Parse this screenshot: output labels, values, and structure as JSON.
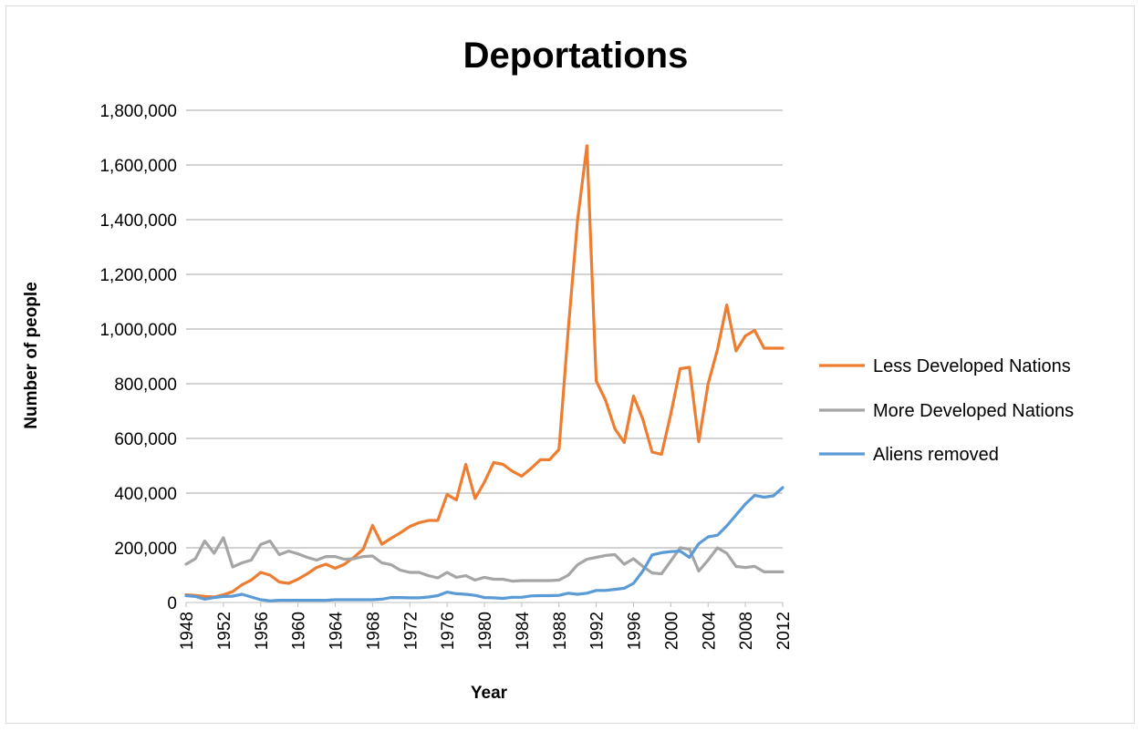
{
  "chart_data": {
    "type": "line",
    "title": "Deportations",
    "xlabel": "Year",
    "ylabel": "Number of people",
    "ylim": [
      0,
      1800000
    ],
    "yticks": [
      "0",
      "200,000",
      "400,000",
      "600,000",
      "800,000",
      "1,000,000",
      "1,200,000",
      "1,400,000",
      "1,600,000",
      "1,800,000"
    ],
    "xticks": [
      "1948",
      "1952",
      "1956",
      "1960",
      "1964",
      "1968",
      "1972",
      "1976",
      "1980",
      "1984",
      "1988",
      "1992",
      "1996",
      "2000",
      "2004",
      "2008",
      "2012"
    ],
    "grid": "horizontal",
    "legend_position": "right",
    "x": [
      1948,
      1949,
      1950,
      1951,
      1952,
      1953,
      1954,
      1955,
      1956,
      1957,
      1958,
      1959,
      1960,
      1961,
      1962,
      1963,
      1964,
      1965,
      1966,
      1967,
      1968,
      1969,
      1970,
      1971,
      1972,
      1973,
      1974,
      1975,
      1976,
      1977,
      1978,
      1979,
      1980,
      1981,
      1982,
      1983,
      1984,
      1985,
      1986,
      1987,
      1988,
      1989,
      1990,
      1991,
      1992,
      1993,
      1994,
      1995,
      1996,
      1997,
      1998,
      1999,
      2000,
      2001,
      2002,
      2003,
      2004,
      2005,
      2006,
      2007,
      2008,
      2009,
      2010,
      2011,
      2012
    ],
    "series": [
      {
        "name": "Less Developed Nations",
        "color": "#ed7d31",
        "values": [
          28000,
          26000,
          22000,
          20000,
          28000,
          40000,
          65000,
          82000,
          110000,
          100000,
          75000,
          70000,
          85000,
          105000,
          128000,
          140000,
          125000,
          140000,
          165000,
          195000,
          282000,
          213000,
          235000,
          255000,
          278000,
          292000,
          300000,
          300000,
          395000,
          375000,
          505000,
          380000,
          440000,
          512000,
          505000,
          480000,
          462000,
          490000,
          522000,
          522000,
          560000,
          1000000,
          1400000,
          1670000,
          810000,
          740000,
          635000,
          585000,
          755000,
          670000,
          550000,
          542000,
          690000,
          855000,
          860000,
          588000,
          800000,
          925000,
          1088000,
          920000,
          975000,
          995000,
          930000,
          930000,
          930000
        ]
      },
      {
        "name": "More Developed Nations",
        "color": "#a5a5a5",
        "values": [
          140000,
          160000,
          225000,
          180000,
          237000,
          130000,
          145000,
          155000,
          212000,
          225000,
          175000,
          188000,
          178000,
          165000,
          155000,
          168000,
          168000,
          158000,
          160000,
          168000,
          170000,
          145000,
          138000,
          118000,
          110000,
          110000,
          98000,
          90000,
          110000,
          92000,
          98000,
          82000,
          92000,
          85000,
          85000,
          78000,
          80000,
          80000,
          80000,
          80000,
          82000,
          100000,
          138000,
          158000,
          165000,
          172000,
          175000,
          140000,
          160000,
          132000,
          108000,
          105000,
          152000,
          200000,
          195000,
          115000,
          155000,
          200000,
          180000,
          132000,
          128000,
          132000,
          112000,
          112000,
          112000
        ]
      },
      {
        "name": "Aliens removed",
        "color": "#5b9bd5",
        "values": [
          25000,
          22000,
          12000,
          18000,
          22000,
          23000,
          30000,
          20000,
          10000,
          6000,
          8000,
          8000,
          8000,
          8000,
          8000,
          8000,
          10000,
          10000,
          10000,
          10000,
          10000,
          12000,
          18000,
          18000,
          17000,
          17000,
          20000,
          25000,
          38000,
          32000,
          30000,
          26000,
          18000,
          17000,
          15000,
          19000,
          19000,
          24000,
          25000,
          25000,
          26000,
          34000,
          30000,
          34000,
          44000,
          44000,
          48000,
          52000,
          70000,
          115000,
          174000,
          182000,
          186000,
          188000,
          165000,
          215000,
          240000,
          246000,
          280000,
          320000,
          360000,
          392000,
          385000,
          390000,
          420000
        ]
      }
    ]
  }
}
